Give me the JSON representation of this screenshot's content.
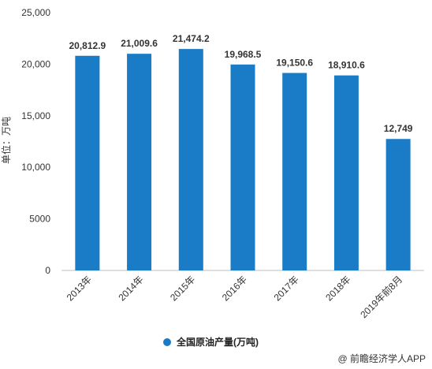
{
  "chart_data": {
    "type": "bar",
    "categories": [
      "2013年",
      "2014年",
      "2015年",
      "2016年",
      "2017年",
      "2018年",
      "2019年前8月"
    ],
    "series": [
      {
        "name": "全国原油产量(万吨)",
        "values": [
          20812.9,
          21009.6,
          21474.2,
          19968.5,
          19150.6,
          18910.6,
          12749
        ],
        "labels": [
          "20,812.9",
          "21,009.6",
          "21,474.2",
          "19,968.5",
          "19,150.6",
          "18,910.6",
          "12,749"
        ],
        "color": "#1a7bc6"
      }
    ],
    "ylabel": "单位：万吨",
    "ylim": [
      0,
      25000
    ],
    "yticks": [
      0,
      5000,
      10000,
      15000,
      20000,
      25000
    ],
    "ytick_labels": [
      "0",
      "5000",
      "10,000",
      "15,000",
      "20,000",
      "25,000"
    ],
    "grid": false,
    "legend_position": "bottom"
  },
  "source": "@ 前瞻经济学人APP"
}
